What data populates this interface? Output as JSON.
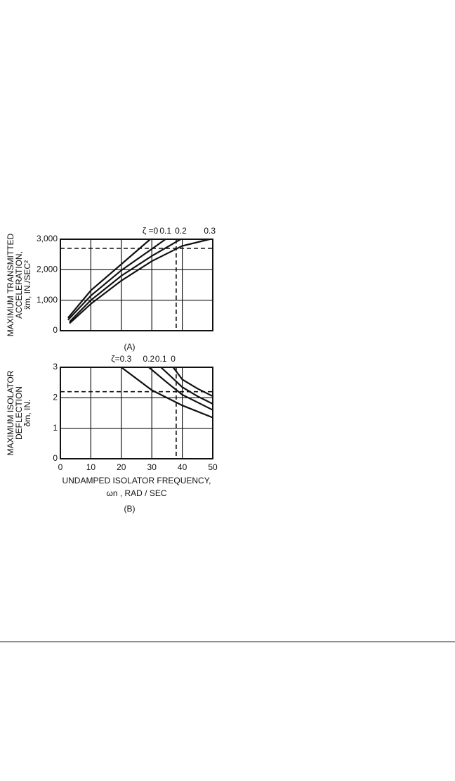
{
  "chart_data": [
    {
      "type": "line",
      "caption": "(A)",
      "ylabel": [
        "MAXIMUM TRANSMITTED",
        "ACCELERATION,",
        "ẍm, IN./SEC²"
      ],
      "xlim": [
        0,
        50
      ],
      "xticks": [
        0,
        10,
        20,
        30,
        40,
        50
      ],
      "xticklabels": false,
      "ylim": [
        0,
        3000
      ],
      "yticks": [
        0,
        {
          "value": 1000,
          "label": "1,000"
        },
        {
          "value": 2000,
          "label": "2,000"
        },
        {
          "value": 3000,
          "label": "3,000"
        }
      ],
      "grid": true,
      "hlines": [
        2700
      ],
      "vlines": [
        38
      ],
      "series": [
        {
          "name": "ζ =0",
          "color": "#111111",
          "x": [
            2.5,
            10,
            20,
            29.5
          ],
          "values": [
            420,
            1320,
            2180,
            3000
          ]
        },
        {
          "name": "0.1",
          "color": "#111111",
          "x": [
            2.5,
            10,
            20,
            30,
            34.5
          ],
          "values": [
            350,
            1150,
            1980,
            2680,
            3000
          ]
        },
        {
          "name": "0.2",
          "color": "#111111",
          "x": [
            3,
            10,
            20,
            30,
            39.5
          ],
          "values": [
            290,
            1000,
            1800,
            2450,
            3000
          ]
        },
        {
          "name": "0.3",
          "color": "#111111",
          "x": [
            3,
            10,
            20,
            30,
            40,
            49
          ],
          "values": [
            240,
            880,
            1640,
            2280,
            2780,
            3000
          ]
        }
      ]
    },
    {
      "type": "line",
      "caption": "(B)",
      "ylabel": [
        "MAXIMUM ISOLATOR",
        "DEFLECTION",
        "δm, IN."
      ],
      "xlabel": [
        "UNDAMPED ISOLATOR FREQUENCY,",
        "ωn , RAD / SEC"
      ],
      "xlim": [
        0,
        50
      ],
      "xticks": [
        0,
        10,
        20,
        30,
        40,
        50
      ],
      "xticklabels": true,
      "ylim": [
        0,
        3
      ],
      "yticks": [
        0,
        1,
        2,
        3
      ],
      "grid": true,
      "hlines": [
        2.2
      ],
      "vlines": [
        38
      ],
      "series": [
        {
          "name": "ζ=0.3",
          "color": "#111111",
          "x": [
            20,
            30,
            40,
            50
          ],
          "values": [
            3,
            2.25,
            1.75,
            1.35
          ]
        },
        {
          "name": "0.2",
          "color": "#111111",
          "x": [
            29,
            35,
            40,
            50
          ],
          "values": [
            3,
            2.5,
            2.1,
            1.6
          ]
        },
        {
          "name": "0.1",
          "color": "#111111",
          "x": [
            33,
            40,
            45,
            50
          ],
          "values": [
            3,
            2.35,
            2.05,
            1.8
          ]
        },
        {
          "name": "0",
          "color": "#111111",
          "x": [
            37,
            40,
            45,
            50
          ],
          "values": [
            3,
            2.6,
            2.3,
            2.05
          ]
        }
      ]
    }
  ]
}
